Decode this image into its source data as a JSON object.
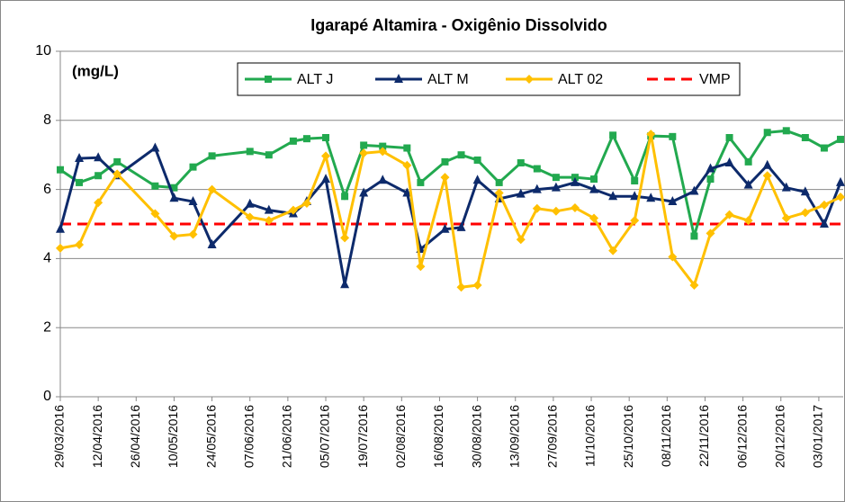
{
  "chart_data": {
    "type": "line",
    "title": "Igarapé Altamira - Oxigênio Dissolvido",
    "annotation": "(mg/L)",
    "x": [
      "29/03/2016",
      "05/04/2016",
      "12/04/2016",
      "19/04/2016",
      "03/05/2016",
      "10/05/2016",
      "17/05/2016",
      "24/05/2016",
      "07/06/2016",
      "14/06/2016",
      "23/06/2016",
      "28/06/2016",
      "05/07/2016",
      "12/07/2016",
      "19/07/2016",
      "26/07/2016",
      "04/08/2016",
      "09/08/2016",
      "18/08/2016",
      "24/08/2016",
      "30/08/2016",
      "07/09/2016",
      "15/09/2016",
      "21/09/2016",
      "28/09/2016",
      "05/10/2016",
      "12/10/2016",
      "19/10/2016",
      "27/10/2016",
      "02/11/2016",
      "10/11/2016",
      "18/11/2016",
      "24/11/2016",
      "01/12/2016",
      "08/12/2016",
      "15/12/2016",
      "22/12/2016",
      "29/12/2016",
      "05/01/2017",
      "11/01/2017"
    ],
    "series": [
      {
        "name": "ALT J",
        "color": "#22a94f",
        "marker": "square",
        "values": [
          6.57,
          6.2,
          6.4,
          6.8,
          6.1,
          6.05,
          6.65,
          6.97,
          7.1,
          7.0,
          7.4,
          7.47,
          7.5,
          5.8,
          7.28,
          7.25,
          7.2,
          6.2,
          6.8,
          7.0,
          6.85,
          6.2,
          6.77,
          6.6,
          6.35,
          6.35,
          6.3,
          7.57,
          6.25,
          7.55,
          7.53,
          4.65,
          6.3,
          7.5,
          6.8,
          7.65,
          7.7,
          7.5,
          7.2,
          7.45
        ]
      },
      {
        "name": "ALT M",
        "color": "#0d2a6b",
        "marker": "triangle",
        "values": [
          4.85,
          6.9,
          6.92,
          6.4,
          7.2,
          5.75,
          5.65,
          4.4,
          5.58,
          5.4,
          5.3,
          5.65,
          6.3,
          3.25,
          5.9,
          6.27,
          5.9,
          4.27,
          4.85,
          4.9,
          6.27,
          5.73,
          5.87,
          6.0,
          6.05,
          6.2,
          6.0,
          5.8,
          5.8,
          5.75,
          5.65,
          5.95,
          6.6,
          6.77,
          6.13,
          6.7,
          6.05,
          5.93,
          5.0,
          6.2
        ]
      },
      {
        "name": "ALT 02",
        "color": "#ffc000",
        "marker": "diamond",
        "values": [
          4.3,
          4.4,
          5.62,
          6.45,
          5.3,
          4.65,
          4.7,
          6.0,
          5.2,
          5.1,
          5.4,
          5.6,
          6.97,
          4.6,
          7.05,
          7.1,
          6.7,
          3.77,
          6.35,
          3.17,
          3.23,
          5.9,
          4.55,
          5.45,
          5.37,
          5.47,
          5.17,
          4.23,
          5.1,
          7.6,
          4.05,
          3.23,
          4.73,
          5.27,
          5.1,
          6.4,
          5.17,
          5.33,
          5.55,
          5.78
        ]
      }
    ],
    "hlines": [
      {
        "name": "VMP",
        "value": 5,
        "color": "#ff0000",
        "dash": true
      }
    ],
    "xlim": [
      "29/03/2016",
      "12/01/2017"
    ],
    "xticks": [
      "29/03/2016",
      "12/04/2016",
      "26/04/2016",
      "10/05/2016",
      "24/05/2016",
      "07/06/2016",
      "21/06/2016",
      "05/07/2016",
      "19/07/2016",
      "02/08/2016",
      "16/08/2016",
      "30/08/2016",
      "13/09/2016",
      "27/09/2016",
      "11/10/2016",
      "25/10/2016",
      "08/11/2016",
      "22/11/2016",
      "06/12/2016",
      "20/12/2016",
      "03/01/2017"
    ],
    "ylim": [
      0,
      10
    ],
    "yticks": [
      0,
      2,
      4,
      6,
      8,
      10
    ],
    "grid": true,
    "legend": "top"
  }
}
